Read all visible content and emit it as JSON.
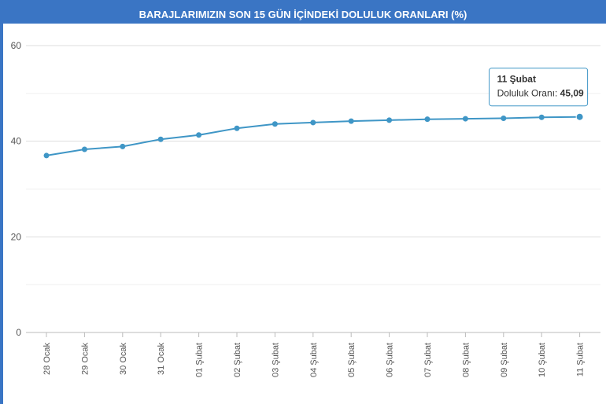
{
  "chart_data": {
    "type": "line",
    "title": "BARAJLARIMIZIN SON 15 GÜN İÇİNDEKİ DOLULUK ORANLARI (%)",
    "categories": [
      "28 Ocak",
      "29 Ocak",
      "30 Ocak",
      "31 Ocak",
      "01 Şubat",
      "02 Şubat",
      "03 Şubat",
      "04 Şubat",
      "05 Şubat",
      "06 Şubat",
      "07 Şubat",
      "08 Şubat",
      "09 Şubat",
      "10 Şubat",
      "11 Şubat"
    ],
    "series": [
      {
        "values": [
          37.0,
          38.3,
          38.9,
          40.4,
          41.3,
          42.7,
          43.6,
          43.9,
          44.2,
          44.4,
          44.6,
          44.7,
          44.8,
          45.0,
          45.09
        ]
      }
    ],
    "yticks": [
      0,
      20,
      40,
      60
    ],
    "ylim": [
      0,
      60
    ],
    "grid": true,
    "color": "#3f96c6",
    "tooltip": {
      "title": "11 Şubat",
      "label": "Doluluk Oranı: ",
      "value": "45,09"
    }
  }
}
